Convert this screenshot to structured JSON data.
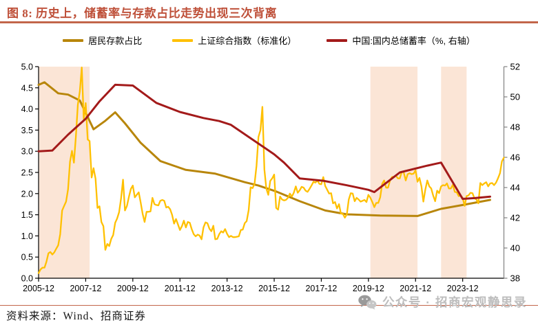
{
  "header": {
    "title": "图 8: 历史上，储蓄率与存款占比走势出现三次背离"
  },
  "footer": {
    "source": "资料来源：Wind、招商证券",
    "watermark_text": "公众号 · 招商宏观静思录"
  },
  "colors": {
    "title": "#BE4F38",
    "rule": "#C2654A",
    "band": "#FBE5D6",
    "left_axis": "#000000",
    "right_axis": "#808080",
    "tick_label": "#000000",
    "watermark": "#BDBDBD",
    "deposit_line": "#B8860B",
    "index_line": "#FFC000",
    "savings_line": "#A31A1A"
  },
  "chart_data": {
    "type": "line",
    "x_axis": {
      "unit": "months since 2005-12",
      "start": "2005-12",
      "end": "2025-09",
      "total_months": 237,
      "tick_months": [
        0,
        24,
        48,
        72,
        96,
        120,
        144,
        168,
        192,
        216
      ],
      "tick_labels": [
        "2005-12",
        "2007-12",
        "2009-12",
        "2011-12",
        "2013-12",
        "2015-12",
        "2017-12",
        "2019-12",
        "2021-12",
        "2023-12"
      ]
    },
    "left_axis": {
      "min": 0,
      "max": 5,
      "step": 0.5,
      "decimals": 1
    },
    "right_axis": {
      "min": 38,
      "max": 52,
      "step": 2,
      "decimals": 0
    },
    "grid": false,
    "legend_position": "top",
    "highlight_bands": [
      {
        "from_month": 0,
        "to_month": 26
      },
      {
        "from_month": 169,
        "to_month": 193
      },
      {
        "from_month": 205,
        "to_month": 218
      }
    ],
    "series": [
      {
        "key": "deposit-share",
        "name": "居民存款占比",
        "axis": "left",
        "width": 3,
        "points": [
          [
            0,
            4.57
          ],
          [
            3,
            4.63
          ],
          [
            10,
            4.37
          ],
          [
            15,
            4.34
          ],
          [
            21,
            4.2
          ],
          [
            28,
            3.52
          ],
          [
            34,
            3.72
          ],
          [
            39,
            3.92
          ],
          [
            44,
            3.66
          ],
          [
            52,
            3.2
          ],
          [
            62,
            2.77
          ],
          [
            75,
            2.56
          ],
          [
            90,
            2.47
          ],
          [
            105,
            2.27
          ],
          [
            112,
            2.19
          ],
          [
            121,
            2.05
          ],
          [
            133,
            1.82
          ],
          [
            146,
            1.6
          ],
          [
            157,
            1.51
          ],
          [
            174,
            1.48
          ],
          [
            193,
            1.47
          ],
          [
            205,
            1.64
          ],
          [
            216,
            1.73
          ],
          [
            230,
            1.85
          ]
        ]
      },
      {
        "key": "sse-index",
        "name": "上证综合指数（标准化）",
        "axis": "left",
        "width": 2.3,
        "start_month": 0,
        "monthly_values": [
          0.12,
          0.21,
          0.25,
          0.25,
          0.39,
          0.59,
          0.62,
          0.56,
          0.61,
          0.7,
          0.78,
          1.04,
          1.6,
          1.71,
          1.81,
          2.1,
          2.75,
          3.01,
          2.73,
          3.36,
          4.1,
          4.42,
          4.98,
          3.76,
          4.14,
          3.28,
          3.24,
          2.38,
          2.6,
          2.35,
          1.66,
          1.7,
          1.33,
          1.23,
          0.67,
          0.81,
          0.76,
          0.93,
          1.02,
          1.31,
          1.41,
          1.56,
          1.88,
          2.33,
          1.6,
          1.71,
          1.92,
          2.11,
          2.19,
          1.91,
          1.97,
          2.03,
          1.79,
          1.52,
          1.33,
          1.57,
          1.57,
          1.58,
          1.9,
          1.75,
          1.73,
          1.72,
          1.83,
          1.85,
          1.83,
          1.67,
          1.69,
          1.63,
          1.5,
          1.29,
          1.4,
          1.27,
          1.14,
          1.23,
          1.36,
          1.2,
          1.33,
          1.31,
          1.16,
          1.04,
          0.99,
          1.03,
          1.01,
          0.92,
          1.2,
          1.32,
          1.3,
          1.17,
          1.11,
          1.24,
          0.92,
          0.93,
          1.04,
          1.11,
          1.08,
          1.16,
          1.05,
          0.97,
          1.0,
          0.97,
          0.97,
          0.98,
          0.99,
          1.14,
          1.15,
          1.3,
          1.35,
          1.61,
          2.15,
          2.13,
          2.23,
          2.66,
          3.34,
          3.5,
          4.05,
          2.57,
          2.12,
          1.97,
          2.3,
          2.36,
          2.45,
          1.66,
          1.62,
          1.93,
          1.86,
          1.84,
          1.85,
          1.9,
          2.0,
          1.93,
          2.02,
          2.17,
          2.02,
          2.08,
          2.16,
          2.14,
          2.07,
          2.04,
          2.11,
          2.19,
          2.28,
          2.26,
          2.31,
          2.23,
          2.22,
          2.39,
          2.18,
          2.09,
          2.0,
          2.01,
          1.77,
          1.8,
          1.65,
          1.75,
          1.53,
          1.52,
          1.43,
          1.51,
          1.86,
          2.01,
          2.0,
          1.82,
          1.9,
          1.86,
          1.81,
          1.83,
          1.85,
          1.8,
          1.97,
          1.9,
          1.8,
          1.68,
          1.78,
          1.78,
          1.91,
          2.23,
          2.31,
          2.14,
          2.14,
          2.31,
          2.39,
          2.4,
          2.42,
          2.36,
          2.36,
          2.52,
          2.5,
          2.31,
          2.46,
          2.48,
          2.46,
          2.47,
          2.55,
          2.28,
          2.37,
          2.17,
          1.81,
          2.1,
          2.31,
          2.17,
          2.12,
          1.95,
          1.82,
          2.07,
          2.01,
          2.17,
          2.2,
          2.19,
          2.24,
          2.12,
          2.12,
          2.21,
          2.04,
          2.03,
          1.94,
          1.95,
          1.9,
          1.71,
          1.94,
          1.96,
          2.02,
          2.01,
          1.89,
          1.86,
          1.77,
          2.25,
          2.2,
          2.24,
          2.27,
          2.17,
          2.24,
          2.25,
          2.2,
          2.26,
          2.36,
          2.48,
          2.76,
          2.85
        ]
      },
      {
        "key": "savings-rate",
        "name": "中国:国内总储蓄率（%, 右轴）",
        "axis": "right",
        "width": 3,
        "points": [
          [
            0,
            46.4
          ],
          [
            7,
            46.45
          ],
          [
            15,
            47.5
          ],
          [
            24,
            48.55
          ],
          [
            31,
            49.7
          ],
          [
            39,
            50.8
          ],
          [
            48,
            50.75
          ],
          [
            60,
            49.6
          ],
          [
            72,
            49.0
          ],
          [
            84,
            48.6
          ],
          [
            92,
            48.4
          ],
          [
            98,
            48.15
          ],
          [
            120,
            46.2
          ],
          [
            125,
            45.65
          ],
          [
            133,
            44.6
          ],
          [
            145,
            44.45
          ],
          [
            157,
            44.15
          ],
          [
            168,
            43.85
          ],
          [
            171,
            43.7
          ],
          [
            184,
            45.0
          ],
          [
            198,
            45.45
          ],
          [
            205,
            45.65
          ],
          [
            216,
            43.25
          ],
          [
            222,
            43.3
          ],
          [
            230,
            43.4
          ]
        ]
      }
    ]
  }
}
